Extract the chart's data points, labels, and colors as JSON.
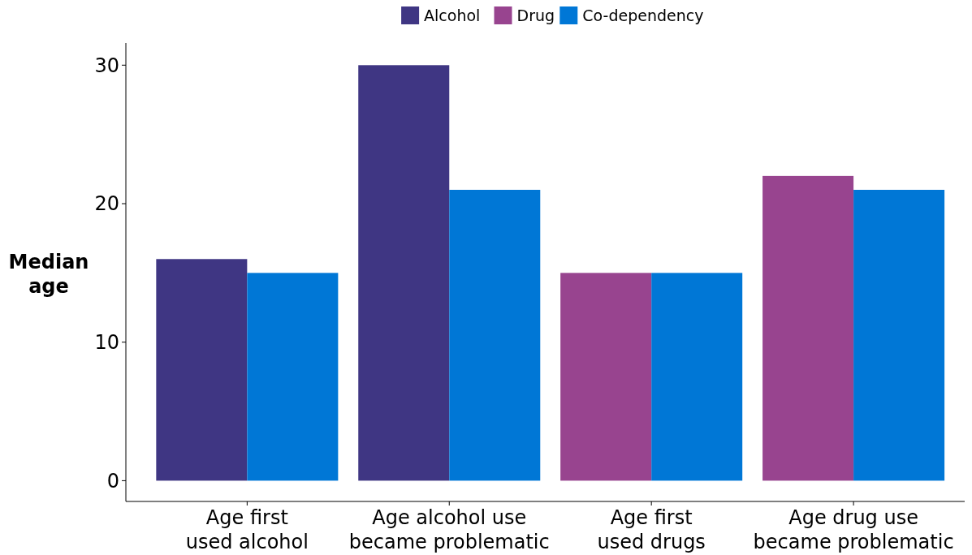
{
  "chart_data": {
    "type": "bar",
    "ylabel": "Median\nage",
    "categories": [
      "Age first\nused alcohol",
      "Age alcohol use\nbecame problematic",
      "Age first\nused drugs",
      "Age drug use\nbecame problematic"
    ],
    "series": [
      {
        "name": "Alcohol",
        "color": "#3f3683",
        "values": [
          16,
          30,
          null,
          null
        ]
      },
      {
        "name": "Drug",
        "color": "#98448f",
        "values": [
          null,
          null,
          15,
          22
        ]
      },
      {
        "name": "Co-dependency",
        "color": "#0077d6",
        "values": [
          15,
          21,
          15,
          21
        ]
      }
    ],
    "ylim": [
      -1.5,
      31.6
    ],
    "yticks": [
      0,
      10,
      20,
      30
    ],
    "grid": false,
    "legend": "top"
  }
}
